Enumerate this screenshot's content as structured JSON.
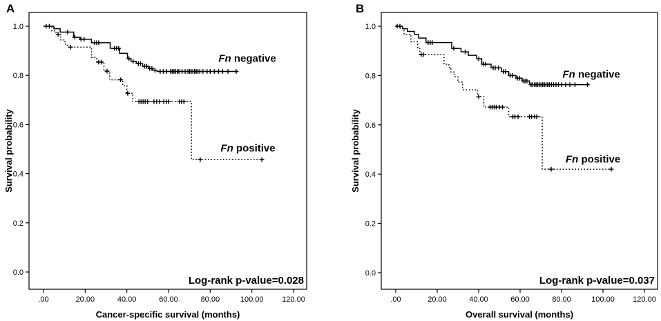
{
  "figure": {
    "background": "#ffffff",
    "curve_color": "#000000"
  },
  "chart_data": [
    {
      "type": "line",
      "chart_style": "kaplan-meier-step",
      "panel_label": "A",
      "title": "",
      "xlabel": "Cancer-specific survival (months)",
      "ylabel": "Survival probability",
      "annotation": "Log-rank p-value=0.028",
      "grid": false,
      "legend_position": "inline-labels",
      "xlim": [
        0,
        120
      ],
      "ylim": [
        0,
        1
      ],
      "xticks": [
        0,
        20,
        40,
        60,
        80,
        100,
        120
      ],
      "xtick_labels": [
        ".00",
        "20.00",
        "40.00",
        "60.00",
        "80.00",
        "100.00",
        "120.00"
      ],
      "yticks": [
        0,
        0.2,
        0.4,
        0.6,
        0.8,
        1.0
      ],
      "ytick_labels": [
        "0.0",
        "0.2",
        "0.4",
        "0.6",
        "0.8",
        "1.0"
      ],
      "series": [
        {
          "name": "Fn negative",
          "name_italic": "Fn",
          "name_rest": " negative",
          "line_style": "solid",
          "color": "#000000",
          "label_anchor": {
            "x": 84,
            "y": 0.856
          },
          "steps": [
            [
              0,
              1.0
            ],
            [
              5,
              0.99
            ],
            [
              8,
              0.976
            ],
            [
              14.5,
              0.955
            ],
            [
              17.5,
              0.947
            ],
            [
              23,
              0.933
            ],
            [
              32,
              0.91
            ],
            [
              36.5,
              0.89
            ],
            [
              40.3,
              0.868
            ],
            [
              42,
              0.857
            ],
            [
              44.5,
              0.848
            ],
            [
              47.5,
              0.837
            ],
            [
              50.5,
              0.828
            ],
            [
              52.5,
              0.821
            ],
            [
              54.5,
              0.816
            ],
            [
              93.5,
              0.816
            ]
          ],
          "censor_marks": [
            [
              1.3,
              1.0
            ],
            [
              2.8,
              1.0
            ],
            [
              11.5,
              0.976
            ],
            [
              15,
              0.955
            ],
            [
              18,
              0.947
            ],
            [
              19.5,
              0.947
            ],
            [
              24.5,
              0.933
            ],
            [
              25.5,
              0.933
            ],
            [
              26.5,
              0.933
            ],
            [
              34,
              0.91
            ],
            [
              35,
              0.91
            ],
            [
              36,
              0.91
            ],
            [
              41,
              0.868
            ],
            [
              43,
              0.857
            ],
            [
              45.5,
              0.848
            ],
            [
              46.5,
              0.848
            ],
            [
              48.5,
              0.837
            ],
            [
              49.5,
              0.837
            ],
            [
              51,
              0.828
            ],
            [
              52,
              0.828
            ],
            [
              53.5,
              0.821
            ],
            [
              56,
              0.816
            ],
            [
              57.5,
              0.816
            ],
            [
              59,
              0.816
            ],
            [
              61,
              0.816
            ],
            [
              61.8,
              0.816
            ],
            [
              62.6,
              0.816
            ],
            [
              63.4,
              0.816
            ],
            [
              64.2,
              0.816
            ],
            [
              65,
              0.816
            ],
            [
              66.5,
              0.816
            ],
            [
              68,
              0.816
            ],
            [
              69.3,
              0.816
            ],
            [
              70.1,
              0.816
            ],
            [
              70.9,
              0.816
            ],
            [
              71.7,
              0.816
            ],
            [
              72.5,
              0.816
            ],
            [
              73.3,
              0.816
            ],
            [
              74.1,
              0.816
            ],
            [
              75,
              0.816
            ],
            [
              76.5,
              0.816
            ],
            [
              78.5,
              0.816
            ],
            [
              80,
              0.816
            ],
            [
              82,
              0.816
            ],
            [
              84,
              0.816
            ],
            [
              86,
              0.816
            ],
            [
              88.5,
              0.816
            ],
            [
              92.5,
              0.816
            ]
          ]
        },
        {
          "name": "Fn positive",
          "name_italic": "Fn",
          "name_rest": " positive",
          "line_style": "dotted",
          "color": "#000000",
          "label_anchor": {
            "x": 85,
            "y": 0.49
          },
          "steps": [
            [
              0,
              1.0
            ],
            [
              4,
              0.981
            ],
            [
              6,
              0.967
            ],
            [
              8.3,
              0.944
            ],
            [
              10.3,
              0.927
            ],
            [
              11.5,
              0.915
            ],
            [
              23,
              0.873
            ],
            [
              25.5,
              0.854
            ],
            [
              29,
              0.817
            ],
            [
              31.8,
              0.782
            ],
            [
              38,
              0.758
            ],
            [
              40,
              0.727
            ],
            [
              42.8,
              0.693
            ],
            [
              71,
              0.693
            ],
            [
              71,
              0.457
            ],
            [
              105.3,
              0.457
            ]
          ],
          "censor_marks": [
            [
              7,
              0.967
            ],
            [
              13,
              0.915
            ],
            [
              26.5,
              0.854
            ],
            [
              27.7,
              0.854
            ],
            [
              30.5,
              0.817
            ],
            [
              37,
              0.782
            ],
            [
              40.4,
              0.727
            ],
            [
              45.8,
              0.693
            ],
            [
              46.8,
              0.693
            ],
            [
              47.8,
              0.693
            ],
            [
              48.8,
              0.693
            ],
            [
              50,
              0.693
            ],
            [
              53,
              0.693
            ],
            [
              54.3,
              0.693
            ],
            [
              55.7,
              0.693
            ],
            [
              57.7,
              0.693
            ],
            [
              59,
              0.693
            ],
            [
              60,
              0.693
            ],
            [
              65.3,
              0.693
            ],
            [
              66.3,
              0.693
            ],
            [
              67.4,
              0.693
            ],
            [
              75.2,
              0.457
            ],
            [
              104.8,
              0.457
            ]
          ]
        }
      ]
    },
    {
      "type": "line",
      "chart_style": "kaplan-meier-step",
      "panel_label": "B",
      "title": "",
      "xlabel": "Overall survival (months)",
      "ylabel": "Survival probability",
      "annotation": "Log-rank p-value=0.037",
      "grid": false,
      "legend_position": "inline-labels",
      "xlim": [
        0,
        120
      ],
      "ylim": [
        0,
        1
      ],
      "xticks": [
        0,
        20,
        40,
        60,
        80,
        100,
        120
      ],
      "xtick_labels": [
        ".00",
        "20.00",
        "40.00",
        "60.00",
        "80.00",
        "100.00",
        "120.00"
      ],
      "yticks": [
        0,
        0.2,
        0.4,
        0.6,
        0.8,
        1.0
      ],
      "ytick_labels": [
        "0.0",
        "0.2",
        "0.4",
        "0.6",
        "0.8",
        "1.0"
      ],
      "series": [
        {
          "name": "Fn negative",
          "name_italic": "Fn",
          "name_rest": " negative",
          "line_style": "solid",
          "color": "#000000",
          "label_anchor": {
            "x": 80.5,
            "y": 0.792
          },
          "steps": [
            [
              0,
              1.0
            ],
            [
              3.3,
              0.99
            ],
            [
              5.6,
              0.979
            ],
            [
              9,
              0.967
            ],
            [
              11,
              0.952
            ],
            [
              14.6,
              0.934
            ],
            [
              27,
              0.91
            ],
            [
              31.5,
              0.896
            ],
            [
              35,
              0.882
            ],
            [
              39,
              0.868
            ],
            [
              41.5,
              0.846
            ],
            [
              46,
              0.831
            ],
            [
              51,
              0.816
            ],
            [
              54.5,
              0.8
            ],
            [
              58,
              0.789
            ],
            [
              61,
              0.778
            ],
            [
              64.5,
              0.763
            ],
            [
              93,
              0.763
            ]
          ],
          "censor_marks": [
            [
              0.7,
              1.0
            ],
            [
              2,
              1.0
            ],
            [
              15.6,
              0.934
            ],
            [
              16.6,
              0.934
            ],
            [
              17.6,
              0.934
            ],
            [
              28,
              0.91
            ],
            [
              33.5,
              0.896
            ],
            [
              40,
              0.868
            ],
            [
              42.3,
              0.846
            ],
            [
              43.4,
              0.846
            ],
            [
              47,
              0.831
            ],
            [
              48,
              0.831
            ],
            [
              49.5,
              0.831
            ],
            [
              52,
              0.816
            ],
            [
              53,
              0.816
            ],
            [
              55.2,
              0.8
            ],
            [
              56.4,
              0.8
            ],
            [
              58.7,
              0.789
            ],
            [
              59.7,
              0.789
            ],
            [
              61.5,
              0.778
            ],
            [
              62.4,
              0.778
            ],
            [
              63.3,
              0.778
            ],
            [
              65.3,
              0.763
            ],
            [
              66.1,
              0.763
            ],
            [
              66.9,
              0.763
            ],
            [
              67.7,
              0.763
            ],
            [
              68.5,
              0.763
            ],
            [
              69.3,
              0.763
            ],
            [
              70.1,
              0.763
            ],
            [
              70.9,
              0.763
            ],
            [
              71.7,
              0.763
            ],
            [
              72.5,
              0.763
            ],
            [
              73.3,
              0.763
            ],
            [
              74.1,
              0.763
            ],
            [
              75.1,
              0.763
            ],
            [
              76.1,
              0.763
            ],
            [
              77.3,
              0.763
            ],
            [
              78.5,
              0.763
            ],
            [
              80,
              0.763
            ],
            [
              82,
              0.763
            ],
            [
              84,
              0.763
            ],
            [
              86.5,
              0.763
            ],
            [
              92.5,
              0.763
            ]
          ]
        },
        {
          "name": "Fn positive",
          "name_italic": "Fn",
          "name_rest": " positive",
          "line_style": "dotted",
          "color": "#000000",
          "label_anchor": {
            "x": 82,
            "y": 0.447
          },
          "steps": [
            [
              0,
              1.0
            ],
            [
              2.3,
              0.99
            ],
            [
              4,
              0.967
            ],
            [
              7.3,
              0.937
            ],
            [
              10.6,
              0.91
            ],
            [
              11.6,
              0.885
            ],
            [
              23.3,
              0.846
            ],
            [
              25.6,
              0.833
            ],
            [
              26.6,
              0.814
            ],
            [
              28.2,
              0.795
            ],
            [
              30,
              0.773
            ],
            [
              32.2,
              0.742
            ],
            [
              39.5,
              0.714
            ],
            [
              42.5,
              0.672
            ],
            [
              54.5,
              0.633
            ],
            [
              70.7,
              0.633
            ],
            [
              70.7,
              0.42
            ],
            [
              104.8,
              0.42
            ]
          ],
          "censor_marks": [
            [
              12.3,
              0.885
            ],
            [
              13.3,
              0.885
            ],
            [
              40,
              0.714
            ],
            [
              45.5,
              0.672
            ],
            [
              46.5,
              0.672
            ],
            [
              47.5,
              0.672
            ],
            [
              48.5,
              0.672
            ],
            [
              50,
              0.672
            ],
            [
              51.5,
              0.672
            ],
            [
              56.5,
              0.633
            ],
            [
              57.5,
              0.633
            ],
            [
              59,
              0.633
            ],
            [
              64.5,
              0.633
            ],
            [
              65.5,
              0.633
            ],
            [
              67,
              0.633
            ],
            [
              68,
              0.633
            ],
            [
              75,
              0.42
            ],
            [
              104,
              0.42
            ]
          ]
        }
      ]
    }
  ]
}
